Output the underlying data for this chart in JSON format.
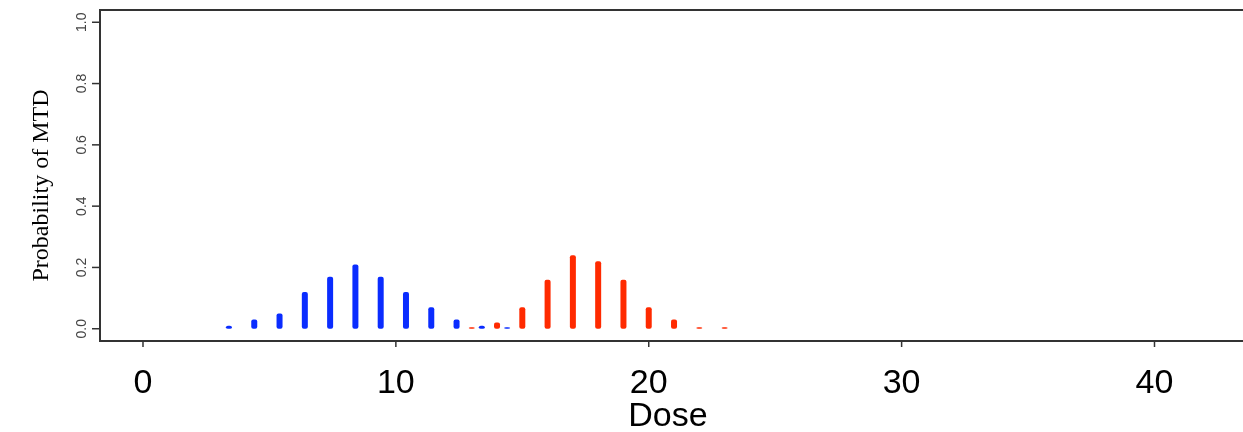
{
  "chart_data": {
    "type": "bar",
    "xlabel": "Dose",
    "ylabel": "Probability of MTD",
    "xlim": [
      -1.7,
      43.5
    ],
    "xticks": [
      0,
      10,
      20,
      30,
      40
    ],
    "ylim": [
      -0.04,
      1.04
    ],
    "yticks": [
      {
        "value": 0,
        "label": "0.0"
      },
      {
        "value": 0.2,
        "label": "0.2"
      },
      {
        "value": 0.4,
        "label": "0.4"
      },
      {
        "value": 0.6,
        "label": "0.6"
      },
      {
        "value": 0.8,
        "label": "0.8"
      },
      {
        "value": 1,
        "label": "1.0"
      }
    ],
    "series": [
      {
        "color": "#0a2cff",
        "x": [
          3.4,
          4.4,
          5.4,
          6.4,
          7.4,
          8.4,
          9.4,
          10.4,
          11.4,
          12.4,
          13.4,
          14.4
        ],
        "values": [
          0.01,
          0.03,
          0.05,
          0.12,
          0.17,
          0.21,
          0.17,
          0.12,
          0.07,
          0.03,
          0.01,
          0.005
        ]
      },
      {
        "color": "#ff2a00",
        "x": [
          13,
          14,
          15,
          16,
          17,
          18,
          19,
          20,
          21,
          22,
          23
        ],
        "values": [
          0.005,
          0.02,
          0.07,
          0.16,
          0.24,
          0.22,
          0.16,
          0.07,
          0.03,
          0.005,
          0.005
        ]
      }
    ],
    "grid": false
  }
}
